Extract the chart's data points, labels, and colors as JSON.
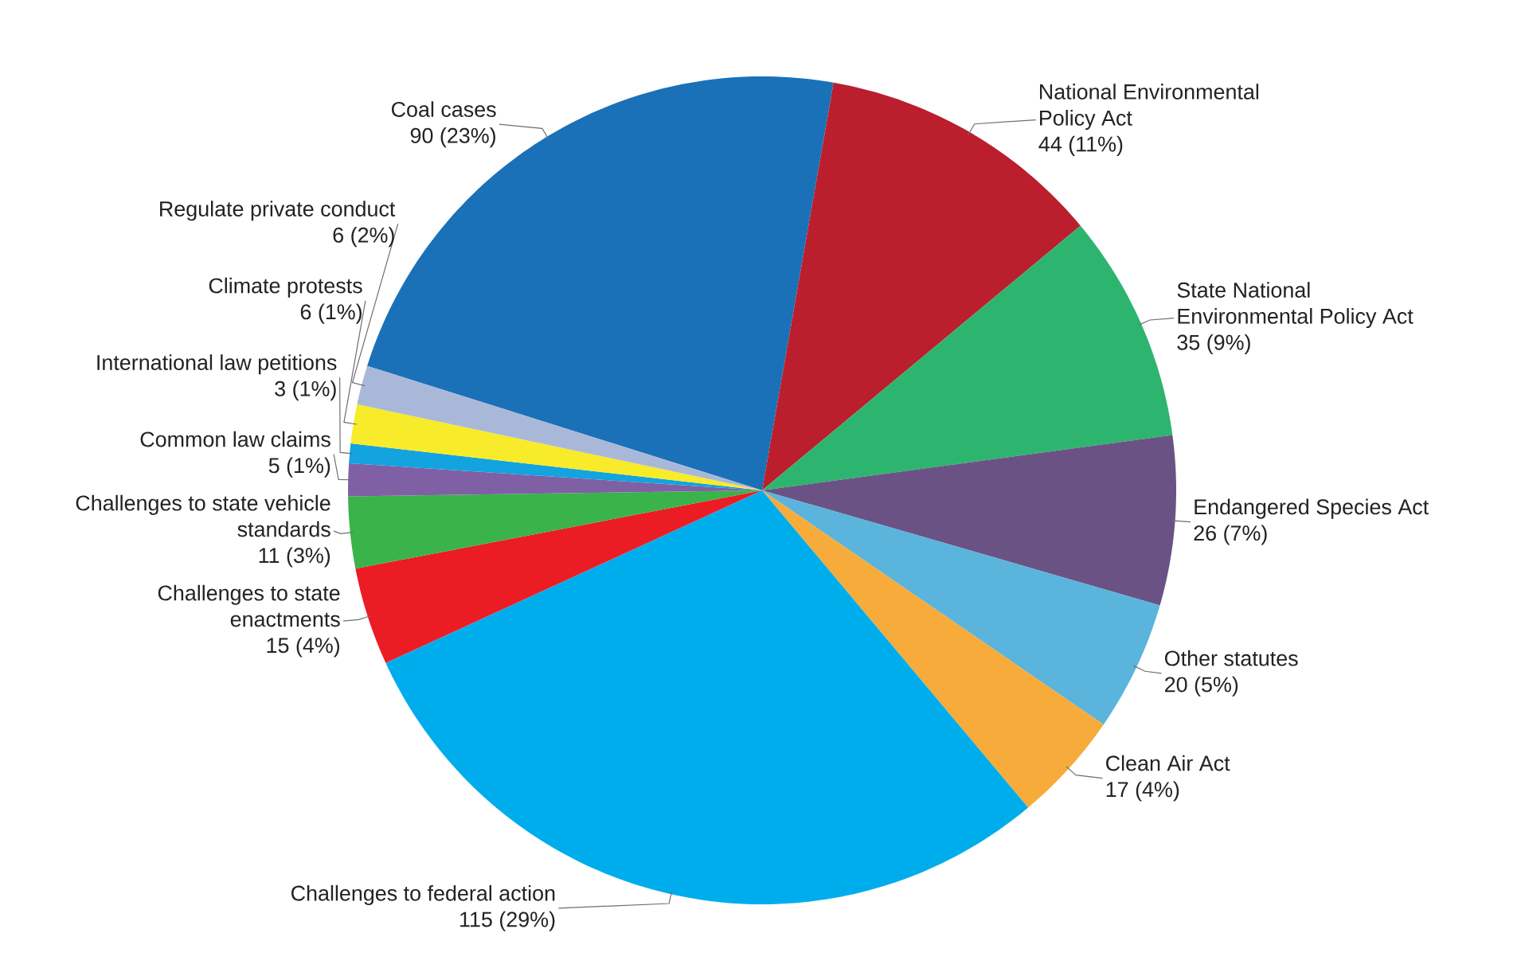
{
  "chart_data": {
    "type": "pie",
    "categories": [
      "Coal cases",
      "National Environmental Policy Act",
      "State National Environmental Policy Act",
      "Endangered Species Act",
      "Other statutes",
      "Clean Air Act",
      "Challenges to federal action",
      "Challenges to state enactments",
      "Challenges to state vehicle standards",
      "Common law claims",
      "International law petitions",
      "Climate protests",
      "Regulate private conduct"
    ],
    "values": [
      90,
      44,
      35,
      26,
      20,
      17,
      115,
      15,
      11,
      5,
      3,
      6,
      6
    ],
    "value_labels": [
      "90 (23%)",
      "44 (11%)",
      "35 (9%)",
      "26 (7%)",
      "20 (5%)",
      "17 (4%)",
      "115 (29%)",
      "15 (4%)",
      "11 (3%)",
      "5 (1%)",
      "3 (1%)",
      "6 (1%)",
      "6 (2%)"
    ],
    "colors": [
      "#1a71b8",
      "#bb1e2d",
      "#2db56f",
      "#6a5384",
      "#5ab4dc",
      "#f7ab3a",
      "#00adec",
      "#ec1c24",
      "#3ab34a",
      "#7f60a5",
      "#13a3de",
      "#f7eb2a",
      "#a9b8d9"
    ]
  }
}
